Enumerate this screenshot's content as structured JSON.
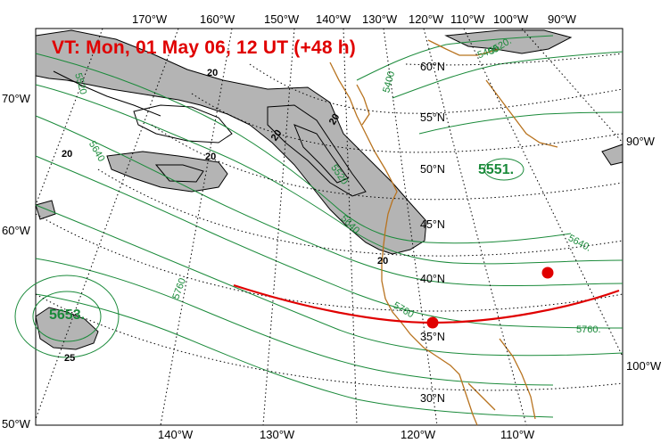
{
  "title": "VT:  Mon, 01 May 06, 12 UT (+48 h)",
  "lon_top": [
    "170°W",
    "160°W",
    "150°W",
    "140°W",
    "130°W",
    "120°W",
    "110°W",
    "100°W",
    "90°W"
  ],
  "lon_bottom": [
    "140°W",
    "130°W",
    "120°W",
    "110°W"
  ],
  "lon_left": [
    "70°W",
    "60°W",
    "50°W"
  ],
  "lon_right": [
    "90°W",
    "100°W"
  ],
  "lat_labels": [
    "60°N",
    "55°N",
    "50°N",
    "45°N",
    "40°N",
    "35°N",
    "30°N"
  ],
  "height_centers": [
    "5551.",
    "5653."
  ],
  "contour_labels_green": [
    "5400",
    "5520",
    "5640",
    "5520",
    "5640",
    "5760",
    "5760",
    "5640.",
    "5760.",
    "5520.",
    "5400."
  ],
  "contour_labels_black": [
    "20",
    "20",
    "20",
    "20",
    "20",
    "20",
    "25"
  ],
  "colors": {
    "title": "#e00000",
    "height_contours": "#1a8a3a",
    "coast": "#b8731f",
    "jet_shade": "#b4b4b4",
    "track": "#e00000"
  },
  "track_markers": 2
}
